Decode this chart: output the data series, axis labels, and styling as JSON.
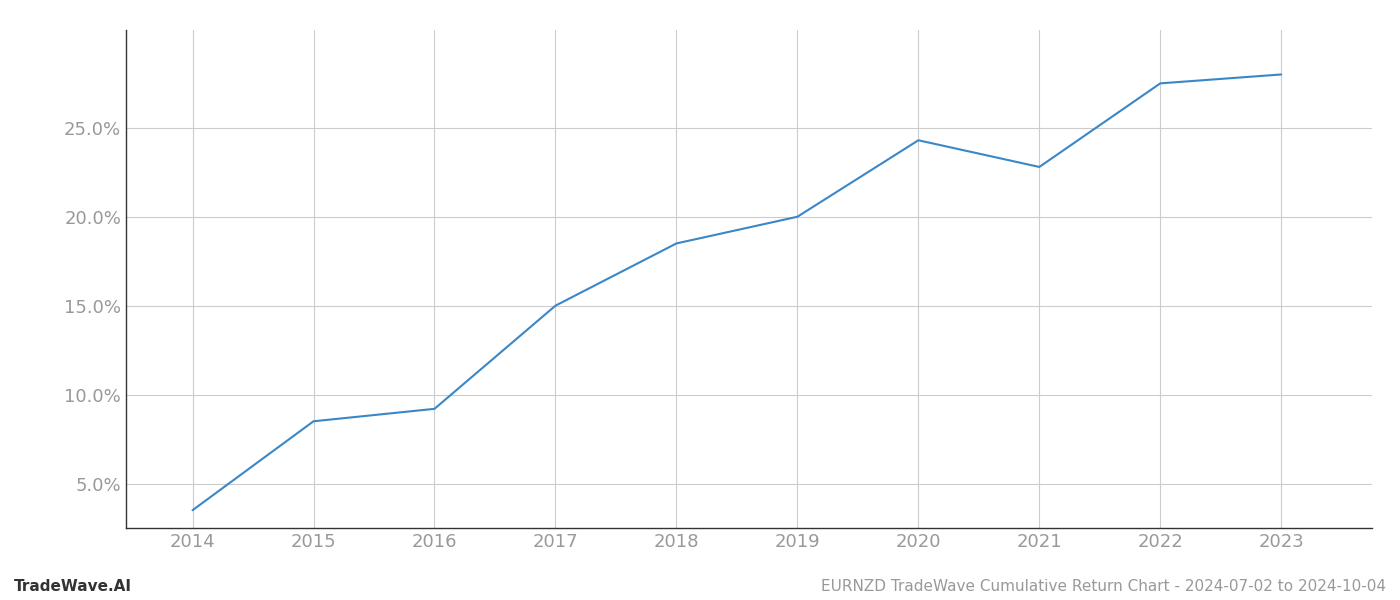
{
  "x_years": [
    2014,
    2015,
    2016,
    2017,
    2018,
    2019,
    2020,
    2021,
    2022,
    2023
  ],
  "y_values": [
    3.5,
    8.5,
    9.2,
    15.0,
    18.5,
    20.0,
    24.3,
    22.8,
    27.5,
    28.0
  ],
  "line_color": "#3a87c8",
  "line_width": 1.5,
  "background_color": "#ffffff",
  "grid_color": "#cccccc",
  "tick_label_color": "#999999",
  "ylabel_ticks": [
    5.0,
    10.0,
    15.0,
    20.0,
    25.0
  ],
  "ylim": [
    2.5,
    30.5
  ],
  "xlim": [
    2013.45,
    2023.75
  ],
  "xlabel_ticks": [
    2014,
    2015,
    2016,
    2017,
    2018,
    2019,
    2020,
    2021,
    2022,
    2023
  ],
  "footer_left": "TradeWave.AI",
  "footer_right": "EURNZD TradeWave Cumulative Return Chart - 2024-07-02 to 2024-10-04",
  "footer_color": "#999999",
  "footer_fontsize": 11,
  "tick_fontsize": 13,
  "left_spine_color": "#333333",
  "bottom_spine_color": "#333333"
}
